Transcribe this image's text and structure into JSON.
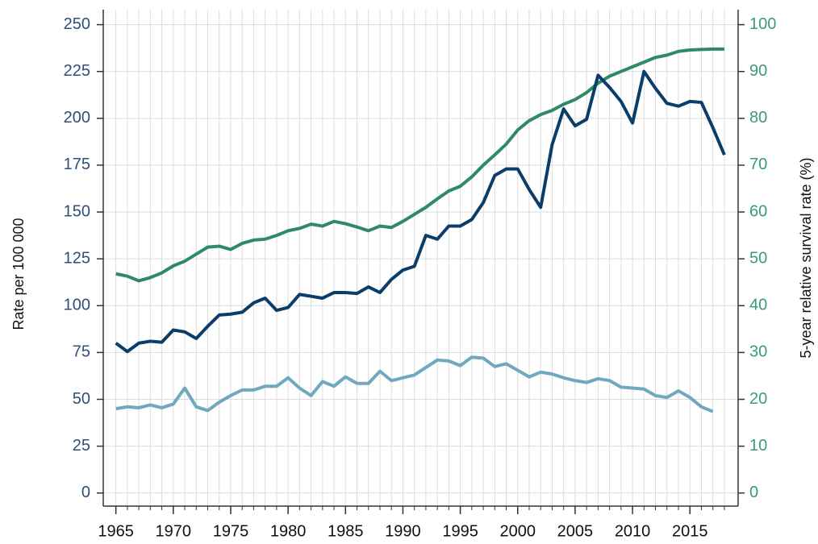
{
  "chart_data": {
    "type": "line",
    "y_label": "Rate per 100 000",
    "y2_label": "5-year relative survival rate (%)",
    "x": [
      1965,
      1966,
      1967,
      1968,
      1969,
      1970,
      1971,
      1972,
      1973,
      1974,
      1975,
      1976,
      1977,
      1978,
      1979,
      1980,
      1981,
      1982,
      1983,
      1984,
      1985,
      1986,
      1987,
      1988,
      1989,
      1990,
      1991,
      1992,
      1993,
      1994,
      1995,
      1996,
      1997,
      1998,
      1999,
      2000,
      2001,
      2002,
      2003,
      2004,
      2005,
      2006,
      2007,
      2008,
      2009,
      2010,
      2011,
      2012,
      2013,
      2014,
      2015,
      2016,
      2017,
      2018
    ],
    "series": [
      {
        "color": "#2e8b63",
        "axis": "y2",
        "values": [
          46.8,
          46.3,
          45.3,
          46,
          47,
          48.5,
          49.5,
          51,
          52.5,
          52.7,
          52,
          53.3,
          54,
          54.2,
          55,
          56,
          56.5,
          57.4,
          57,
          58,
          57.5,
          56.8,
          56,
          57,
          56.7,
          58,
          59.5,
          61,
          62.8,
          64.5,
          65.5,
          67.5,
          70,
          72.2,
          74.5,
          77.5,
          79.5,
          80.8,
          81.7,
          83,
          84,
          85.5,
          87.5,
          89,
          90,
          91,
          92,
          93,
          93.5,
          94.3,
          94.6,
          94.7,
          94.8,
          94.8
        ]
      },
      {
        "color": "#0b3d6b",
        "values": [
          80,
          75.5,
          80,
          81,
          80.5,
          87,
          86,
          82.5,
          89,
          95,
          95.5,
          96.5,
          101.5,
          104,
          97.5,
          99,
          106,
          105,
          104,
          107,
          107,
          106.5,
          110,
          107,
          114,
          119,
          121,
          137.5,
          135.5,
          142.5,
          142.5,
          146,
          155,
          169.5,
          173,
          173,
          162,
          152.5,
          186,
          205,
          196,
          199.5,
          223,
          216.5,
          209,
          197.5,
          225,
          216,
          208,
          206.5,
          209,
          208.5,
          195,
          180.5
        ]
      },
      {
        "color": "#6fa8bf",
        "values": [
          45,
          46,
          45.5,
          47,
          45.5,
          47.5,
          56,
          46,
          44,
          48.5,
          52,
          55,
          55,
          57,
          57,
          61.5,
          56,
          52,
          59.5,
          57,
          62,
          58.5,
          58.5,
          65,
          60,
          61.5,
          63,
          67,
          71,
          70.5,
          68,
          72.5,
          72,
          67.5,
          69,
          65.5,
          62,
          64.5,
          63.5,
          61.5,
          60,
          59,
          61,
          60,
          56.5,
          56,
          55.5,
          52,
          51,
          54.5,
          51,
          46,
          43.5,
          null
        ]
      }
    ],
    "xlim": [
      1963.9,
      2019.2
    ],
    "xticks": [
      1965,
      1970,
      1975,
      1980,
      1985,
      1990,
      1995,
      2000,
      2005,
      2010,
      2015
    ],
    "ylim": [
      -7,
      258
    ],
    "yticks": [
      0,
      25,
      50,
      75,
      100,
      125,
      150,
      175,
      200,
      225,
      250
    ],
    "y2lim": [
      -2.8,
      103.2
    ],
    "y2ticks": [
      0,
      10,
      20,
      30,
      40,
      50,
      60,
      70,
      80,
      90,
      100
    ],
    "grid": true
  }
}
